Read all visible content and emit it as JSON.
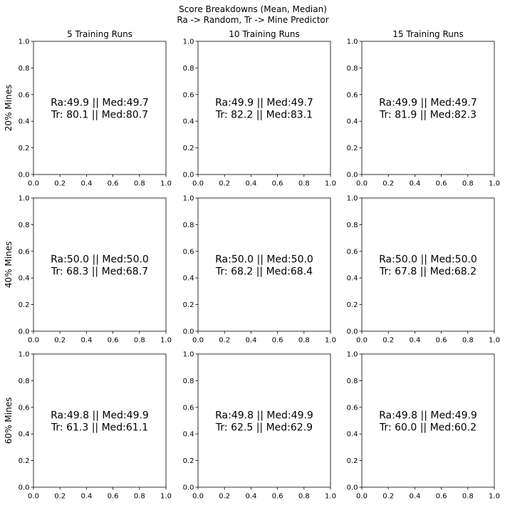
{
  "chart_data": {
    "type": "grid-of-text-panels",
    "suptitle": {
      "line1": "Score Breakdowns (Mean, Median)",
      "line2": "Ra -> Random, Tr -> Mine Predictor"
    },
    "column_titles": [
      "5 Training Runs",
      "10 Training Runs",
      "15 Training Runs"
    ],
    "row_labels": [
      "20% Mines",
      "40% Mines",
      "60% Mines"
    ],
    "xlim": [
      0,
      1
    ],
    "ylim": [
      0,
      1
    ],
    "xticks": [
      "0.0",
      "0.2",
      "0.4",
      "0.6",
      "0.8",
      "1.0"
    ],
    "yticks": [
      "0.0",
      "0.2",
      "0.4",
      "0.6",
      "0.8",
      "1.0"
    ],
    "panels": [
      [
        {
          "line1": "Ra:49.9 || Med:49.7",
          "line2": "Tr: 80.1 || Med:80.7"
        },
        {
          "line1": "Ra:49.9 || Med:49.7",
          "line2": "Tr: 82.2 || Med:83.1"
        },
        {
          "line1": "Ra:49.9 || Med:49.7",
          "line2": "Tr: 81.9 || Med:82.3"
        }
      ],
      [
        {
          "line1": "Ra:50.0 || Med:50.0",
          "line2": "Tr: 68.3 || Med:68.7"
        },
        {
          "line1": "Ra:50.0 || Med:50.0",
          "line2": "Tr: 68.2 || Med:68.4"
        },
        {
          "line1": "Ra:50.0 || Med:50.0",
          "line2": "Tr: 67.8 || Med:68.2"
        }
      ],
      [
        {
          "line1": "Ra:49.8 || Med:49.9",
          "line2": "Tr: 61.3 || Med:61.1"
        },
        {
          "line1": "Ra:49.8 || Med:49.9",
          "line2": "Tr: 62.5 || Med:62.9"
        },
        {
          "line1": "Ra:49.8 || Med:49.9",
          "line2": "Tr: 60.0 || Med:60.2"
        }
      ]
    ],
    "annotation_position": {
      "x": 0.5,
      "y": 0.5
    }
  }
}
